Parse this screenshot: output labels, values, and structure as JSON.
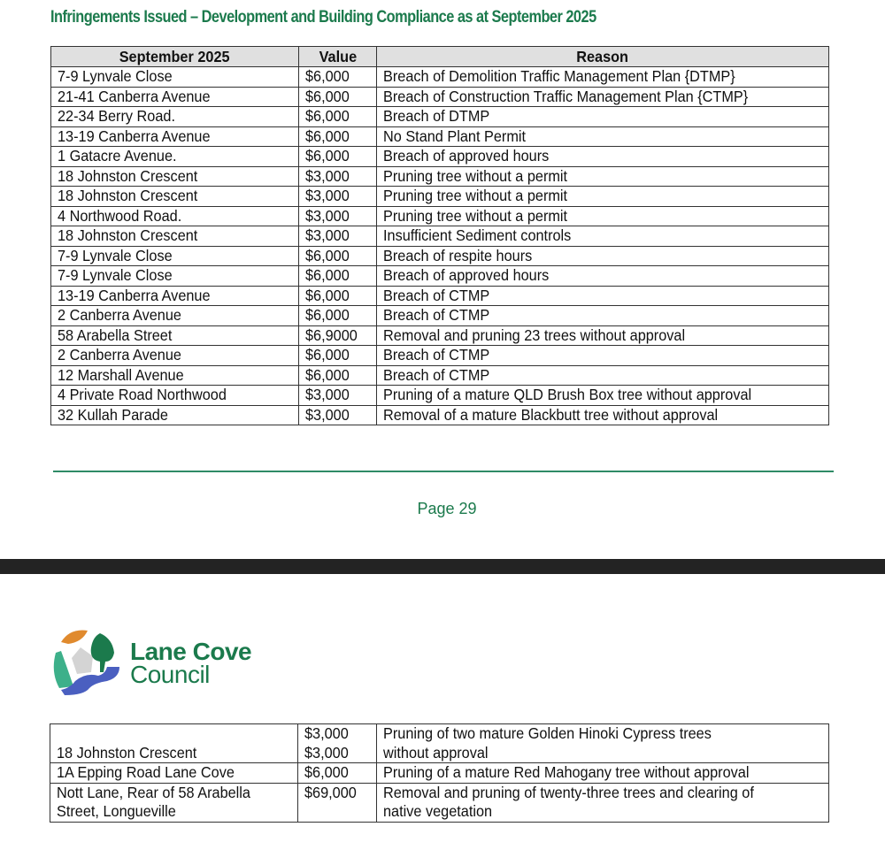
{
  "page1": {
    "title": "Infringements Issued – Development and Building Compliance as at September 2025",
    "table": {
      "headers": [
        "September 2025",
        "Value",
        "Reason"
      ],
      "rows": [
        [
          "7-9 Lynvale Close",
          "$6,000",
          "Breach of Demolition Traffic Management Plan {DTMP}"
        ],
        [
          "21-41 Canberra Avenue",
          "$6,000",
          "Breach of Construction Traffic Management Plan {CTMP}"
        ],
        [
          "22-34 Berry Road.",
          "$6,000",
          "Breach of DTMP"
        ],
        [
          "13-19 Canberra Avenue",
          "$6,000",
          "No Stand Plant Permit"
        ],
        [
          "1 Gatacre Avenue.",
          "$6,000",
          "Breach of approved hours"
        ],
        [
          "18 Johnston Crescent",
          "$3,000",
          "Pruning tree without a permit"
        ],
        [
          "18 Johnston Crescent",
          "$3,000",
          "Pruning tree without a permit"
        ],
        [
          "4 Northwood Road.",
          "$3,000",
          "Pruning tree without a permit"
        ],
        [
          "18 Johnston Crescent",
          "$3,000",
          "Insufficient Sediment controls"
        ],
        [
          "7-9 Lynvale Close",
          "$6,000",
          "Breach of respite hours"
        ],
        [
          "7-9 Lynvale Close",
          "$6,000",
          "Breach of approved hours"
        ],
        [
          "13-19 Canberra Avenue",
          "$6,000",
          "Breach of CTMP"
        ],
        [
          "2 Canberra Avenue",
          "$6,000",
          "Breach of CTMP"
        ],
        [
          "58 Arabella Street",
          "$6,9000",
          "Removal and pruning 23 trees without approval"
        ],
        [
          "2 Canberra Avenue",
          "$6,000",
          "Breach of CTMP"
        ],
        [
          "12 Marshall Avenue",
          "$6,000",
          "Breach of CTMP"
        ],
        [
          "4 Private Road Northwood",
          "$3,000",
          "Pruning of a mature QLD Brush Box tree without approval"
        ],
        [
          "32 Kullah Parade",
          "$3,000",
          "Removal of a mature Blackbutt tree without approval"
        ]
      ]
    },
    "page_number": "Page 29"
  },
  "page2": {
    "logo": {
      "line1": "Lane Cove",
      "line2": "Council"
    },
    "table": {
      "rows": [
        [
          [
            "",
            "18 Johnston Crescent"
          ],
          [
            "$3,000",
            "$3,000"
          ],
          [
            "Pruning of two mature Golden Hinoki Cypress trees",
            "without approval"
          ]
        ],
        [
          [
            "1A Epping Road Lane Cove"
          ],
          [
            "$6,000"
          ],
          [
            "Pruning of a mature Red Mahogany tree without approval"
          ]
        ],
        [
          [
            "Nott Lane, Rear of 58 Arabella",
            "Street, Longueville"
          ],
          [
            "$69,000"
          ],
          [
            "Removal and pruning of twenty-three trees and clearing of",
            "native vegetation"
          ]
        ]
      ]
    }
  },
  "colors": {
    "accent_green": "#1b7a4c",
    "header_gray": "#e0e0e0",
    "separator_band": "#232323"
  }
}
